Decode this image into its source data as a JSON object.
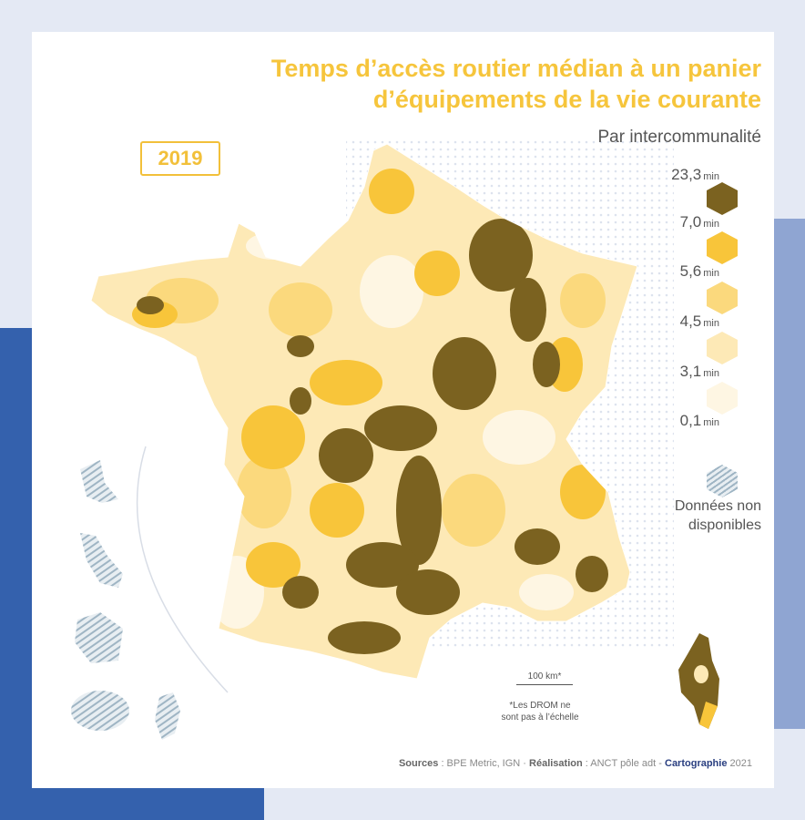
{
  "title": {
    "line1": "Temps d’accès routier médian à un panier",
    "line2": "d’équipements de la vie courante"
  },
  "subtitle": "Par intercommunalité",
  "year": "2019",
  "legend": {
    "unit": "min",
    "breaks": [
      "23,3",
      "7,0",
      "5,6",
      "4,5",
      "3,1",
      "0,1"
    ],
    "classes": [
      {
        "color": "#7b6220"
      },
      {
        "color": "#f8c53a"
      },
      {
        "color": "#fbd97d"
      },
      {
        "color": "#fde9b6"
      },
      {
        "color": "#fef6e3"
      }
    ],
    "no_data": {
      "line1": "Données non",
      "line2": "disponibles",
      "pattern_color": "#9fb5c4"
    }
  },
  "scale": {
    "label": "100 km*"
  },
  "drom_note": {
    "line1": "*Les DROM ne",
    "line2": "sont pas à l’échelle"
  },
  "footer": {
    "sources_label": "Sources",
    "sources": " : BPE Metric, IGN · ",
    "realisation_label": "Réalisation",
    "realisation": " : ANCT pôle adt - ",
    "carto_label": "Cartographie",
    "year": " 2021"
  },
  "colors": {
    "title": "#f6c53c",
    "accent_blue": "#3461ad",
    "footer_blue": "#2a3f80"
  }
}
